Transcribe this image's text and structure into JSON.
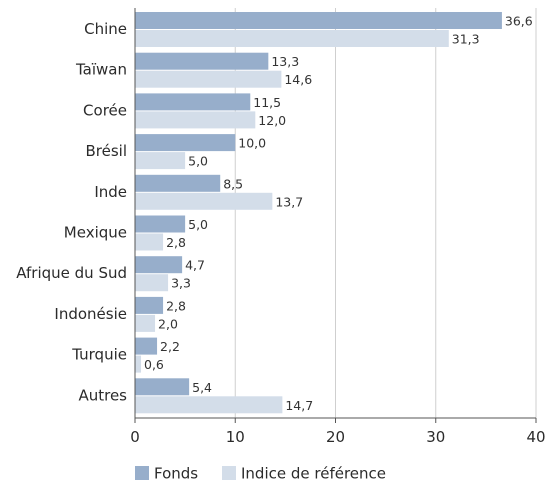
{
  "chart_data": {
    "type": "bar",
    "orientation": "horizontal",
    "categories": [
      "Chine",
      "Taïwan",
      "Corée",
      "Brésil",
      "Inde",
      "Mexique",
      "Afrique du Sud",
      "Indonésie",
      "Turquie",
      "Autres"
    ],
    "series": [
      {
        "name": "Fonds",
        "color": "#97aecb",
        "values": [
          36.6,
          13.3,
          11.5,
          10.0,
          8.5,
          5.0,
          4.7,
          2.8,
          2.2,
          5.4
        ],
        "labels": [
          "36,6",
          "13,3",
          "11,5",
          "10,0",
          "8,5",
          "5,0",
          "4,7",
          "2,8",
          "2,2",
          "5,4"
        ]
      },
      {
        "name": "Indice de référence",
        "color": "#d3dde9",
        "values": [
          31.3,
          14.6,
          12.0,
          5.0,
          13.7,
          2.8,
          3.3,
          2.0,
          0.6,
          14.7
        ],
        "labels": [
          "31,3",
          "14,6",
          "12,0",
          "5,0",
          "13,7",
          "2,8",
          "3,3",
          "2,0",
          "0,6",
          "14,7"
        ]
      }
    ],
    "xlim": [
      0,
      40
    ],
    "xticks": [
      0,
      10,
      20,
      30,
      40
    ],
    "xtick_labels": [
      "0",
      "10",
      "20",
      "30",
      "40"
    ],
    "grid": "vertical",
    "legend": "bottom-left"
  }
}
